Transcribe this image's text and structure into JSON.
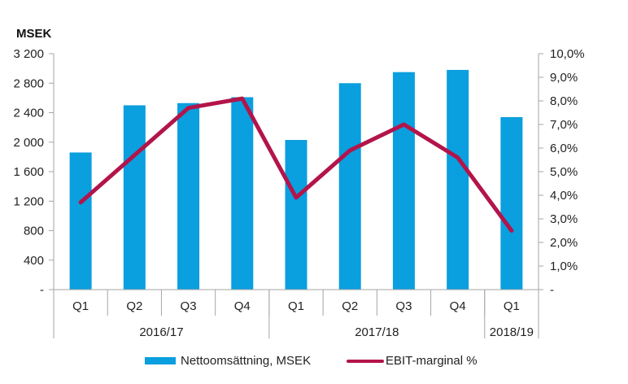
{
  "chart_data": {
    "type": "bar",
    "y_unit_label": "MSEK",
    "categories": [
      "Q1",
      "Q2",
      "Q3",
      "Q4",
      "Q1",
      "Q2",
      "Q3",
      "Q4",
      "Q1"
    ],
    "groups": [
      {
        "label": "2016/17",
        "count": 4
      },
      {
        "label": "2017/18",
        "count": 4
      },
      {
        "label": "2018/19",
        "count": 1
      }
    ],
    "series": [
      {
        "name": "Nettoomsättning, MSEK",
        "type": "bar",
        "axis": "left",
        "color": "#0a9fde",
        "values": [
          1860,
          2500,
          2530,
          2610,
          2030,
          2800,
          2950,
          2980,
          2340
        ]
      },
      {
        "name": "EBIT-marginal %",
        "type": "line",
        "axis": "right",
        "color": "#b3144a",
        "values": [
          3.7,
          5.7,
          7.7,
          8.1,
          3.9,
          5.9,
          7.0,
          5.6,
          2.5
        ]
      }
    ],
    "left_axis": {
      "ylim": [
        0,
        3200
      ],
      "ticks": [
        0,
        400,
        800,
        1200,
        1600,
        2000,
        2400,
        2800,
        3200
      ],
      "tick_labels": [
        "-",
        "400",
        "800",
        "1 200",
        "1 600",
        "2 000",
        "2 400",
        "2 800",
        "3 200"
      ]
    },
    "right_axis": {
      "ylim": [
        0,
        10
      ],
      "ticks": [
        0,
        1,
        2,
        3,
        4,
        5,
        6,
        7,
        8,
        9,
        10
      ],
      "tick_labels": [
        "-",
        "1,0%",
        "2,0%",
        "3,0%",
        "4,0%",
        "5,0%",
        "6,0%",
        "7,0%",
        "8,0%",
        "9,0%",
        "10,0%"
      ]
    },
    "legend_position": "bottom",
    "grid": false
  }
}
